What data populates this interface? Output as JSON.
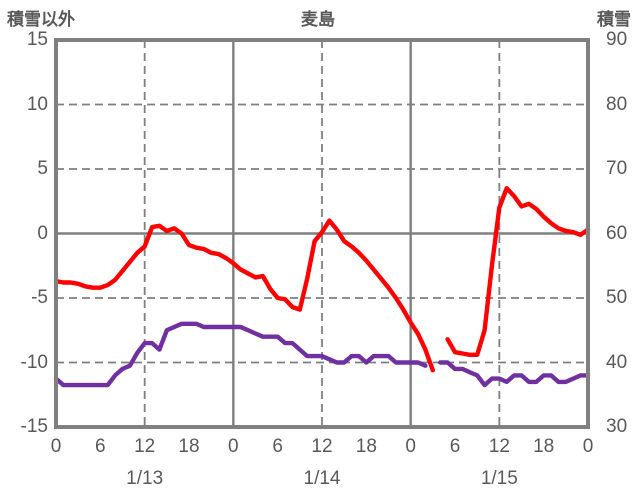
{
  "header": {
    "left_axis_title": "積雪以外",
    "title": "麦島",
    "right_axis_title": "積雪"
  },
  "colors": {
    "red_series": "#ff0000",
    "purple_series": "#7030a0",
    "grid": "#7f7f7f",
    "axis_border": "#808080",
    "text": "#595959",
    "background": "#ffffff"
  },
  "chart_data": {
    "type": "line",
    "title": "麦島",
    "grid": "on",
    "legend": "none",
    "left_axis": {
      "title": "積雪以外",
      "min": -15,
      "max": 15,
      "ticks": [
        15,
        10,
        5,
        0,
        -5,
        -10,
        -15
      ]
    },
    "right_axis": {
      "title": "積雪",
      "min": 30,
      "max": 90,
      "ticks": [
        90,
        80,
        70,
        60,
        50,
        40,
        30
      ]
    },
    "x_axis": {
      "total_hours": 72,
      "tick_interval_hours": 6,
      "tick_labels": [
        "0",
        "6",
        "12",
        "18",
        "0",
        "6",
        "12",
        "18",
        "0",
        "6",
        "12",
        "18",
        "0"
      ],
      "date_labels": [
        {
          "label": "1/13",
          "center_hour": 12
        },
        {
          "label": "1/14",
          "center_hour": 36
        },
        {
          "label": "1/15",
          "center_hour": 60
        }
      ],
      "dashed_gridline_hours": [
        12,
        36,
        60
      ],
      "solid_gridline_hours": [
        24,
        48
      ]
    },
    "dashed_gridline_values": [
      10,
      5,
      -5,
      -10
    ],
    "solid_gridline_values": [
      0
    ],
    "series": [
      {
        "name": "red-line",
        "axis": "left",
        "color": "#ff0000",
        "start_hour": 0,
        "step_hours": 1,
        "values": [
          -3.7,
          -3.8,
          -3.8,
          -3.9,
          -4.1,
          -4.2,
          -4.2,
          -4.0,
          -3.6,
          -2.9,
          -2.2,
          -1.5,
          -1.0,
          0.5,
          0.6,
          0.2,
          0.4,
          0.0,
          -0.9,
          -1.1,
          -1.2,
          -1.5,
          -1.6,
          -1.9,
          -2.3,
          -2.8,
          -3.1,
          -3.4,
          -3.3,
          -4.3,
          -5.0,
          -5.1,
          -5.7,
          -5.9,
          -3.5,
          -0.6,
          0.1,
          1.0,
          0.3,
          -0.6,
          -1.0,
          -1.5,
          -2.1,
          -2.8,
          -3.5,
          -4.2,
          -5.0,
          -5.9,
          -6.9,
          -7.8,
          -9.0,
          -10.6,
          null,
          -8.2,
          -9.2,
          -9.3,
          -9.4,
          -9.4,
          -7.5,
          -2.5,
          2.0,
          3.5,
          2.9,
          2.1,
          2.3,
          1.9,
          1.3,
          0.8,
          0.4,
          0.2,
          0.1,
          -0.1,
          0.3
        ]
      },
      {
        "name": "purple-line",
        "axis": "right",
        "color": "#7030a0",
        "start_hour": 0,
        "step_hours": 1,
        "values": [
          37.5,
          36.5,
          36.5,
          36.5,
          36.5,
          36.5,
          36.5,
          36.5,
          38,
          39,
          39.5,
          41.5,
          43,
          43,
          42,
          45,
          45.5,
          46,
          46,
          46,
          45.5,
          45.5,
          45.5,
          45.5,
          45.5,
          45.5,
          45,
          44.5,
          44,
          44,
          44,
          43,
          43,
          42,
          41,
          41,
          41,
          40.5,
          40,
          40,
          41,
          41,
          40,
          41,
          41,
          41,
          40,
          40,
          40,
          40,
          39.5,
          null,
          40,
          40,
          39,
          39,
          38.5,
          38,
          36.5,
          37.5,
          37.5,
          37,
          38,
          38,
          37,
          37,
          38,
          38,
          37,
          37,
          37.5,
          38,
          38
        ]
      }
    ]
  }
}
